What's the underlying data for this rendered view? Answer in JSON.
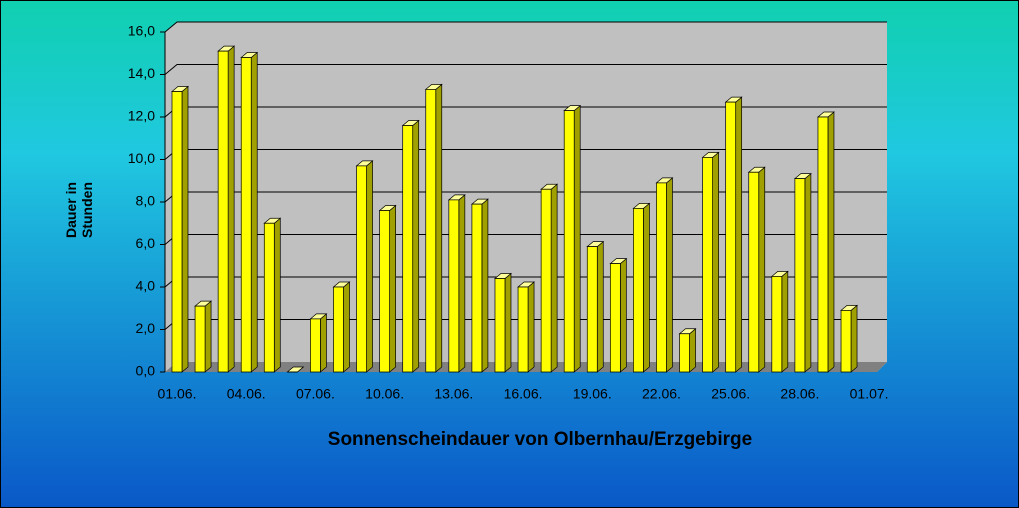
{
  "chart_data": {
    "type": "bar3d",
    "title": "Sonnenscheindauer von Olbernhau/Erzgebirge",
    "y_label": [
      "Dauer in",
      "Stunden"
    ],
    "categories": [
      "01.06.",
      null,
      null,
      "04.06.",
      null,
      null,
      "07.06.",
      null,
      null,
      "10.06.",
      null,
      null,
      "13.06.",
      null,
      null,
      "16.06.",
      null,
      null,
      "19.06.",
      null,
      null,
      "22.06.",
      null,
      null,
      "25.06.",
      null,
      null,
      "28.06.",
      null,
      null,
      "01.07."
    ],
    "values": [
      13.2,
      3.1,
      15.1,
      14.8,
      7.0,
      0.0,
      2.5,
      4.0,
      9.7,
      7.6,
      11.6,
      13.3,
      8.1,
      7.9,
      4.4,
      4.0,
      8.6,
      12.3,
      5.9,
      5.1,
      7.7,
      8.9,
      1.8,
      10.1,
      12.7,
      9.4,
      4.5,
      9.1,
      12.0,
      2.9,
      null
    ],
    "color": "#ffff00",
    "ylim": [
      0,
      16
    ],
    "yticks": [
      {
        "value": 0,
        "label": "0,0"
      },
      {
        "value": 2,
        "label": "2,0"
      },
      {
        "value": 4,
        "label": "4,0"
      },
      {
        "value": 6,
        "label": "6,0"
      },
      {
        "value": 8,
        "label": "8,0"
      },
      {
        "value": 10,
        "label": "10,0"
      },
      {
        "value": 12,
        "label": "12,0"
      },
      {
        "value": 14,
        "label": "14,0"
      },
      {
        "value": 16,
        "label": "16,0"
      }
    ],
    "grid": true
  }
}
